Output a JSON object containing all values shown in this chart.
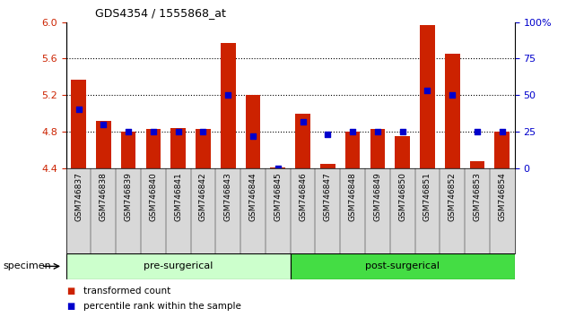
{
  "title": "GDS4354 / 1555868_at",
  "samples": [
    "GSM746837",
    "GSM746838",
    "GSM746839",
    "GSM746840",
    "GSM746841",
    "GSM746842",
    "GSM746843",
    "GSM746844",
    "GSM746845",
    "GSM746846",
    "GSM746847",
    "GSM746848",
    "GSM746849",
    "GSM746850",
    "GSM746851",
    "GSM746852",
    "GSM746853",
    "GSM746854"
  ],
  "bar_values": [
    5.37,
    4.92,
    4.8,
    4.83,
    4.84,
    4.83,
    5.77,
    5.2,
    4.41,
    5.0,
    4.45,
    4.8,
    4.83,
    4.75,
    5.97,
    5.65,
    4.47,
    4.8
  ],
  "dot_percentiles": [
    40,
    30,
    25,
    25,
    25,
    25,
    50,
    22,
    0,
    32,
    23,
    25,
    25,
    25,
    53,
    50,
    25,
    25
  ],
  "ylim_left": [
    4.4,
    6.0
  ],
  "ylim_right": [
    0,
    100
  ],
  "yticks_left": [
    4.4,
    4.8,
    5.2,
    5.6,
    6.0
  ],
  "yticks_right": [
    0,
    25,
    50,
    75,
    100
  ],
  "yticks_right_labels": [
    "0",
    "25",
    "50",
    "75",
    "100%"
  ],
  "bar_color": "#CC2200",
  "dot_color": "#0000CC",
  "group_labels": [
    "pre-surgerical",
    "post-surgerical"
  ],
  "group_colors": [
    "#CCFFCC",
    "#44DD44"
  ],
  "group_ranges": [
    [
      0,
      8
    ],
    [
      9,
      17
    ]
  ],
  "specimen_label": "specimen",
  "legend_bar_label": "transformed count",
  "legend_dot_label": "percentile rank within the sample",
  "tick_label_color": "#CC2200",
  "right_tick_color": "#0000CC",
  "base_value": 4.4
}
